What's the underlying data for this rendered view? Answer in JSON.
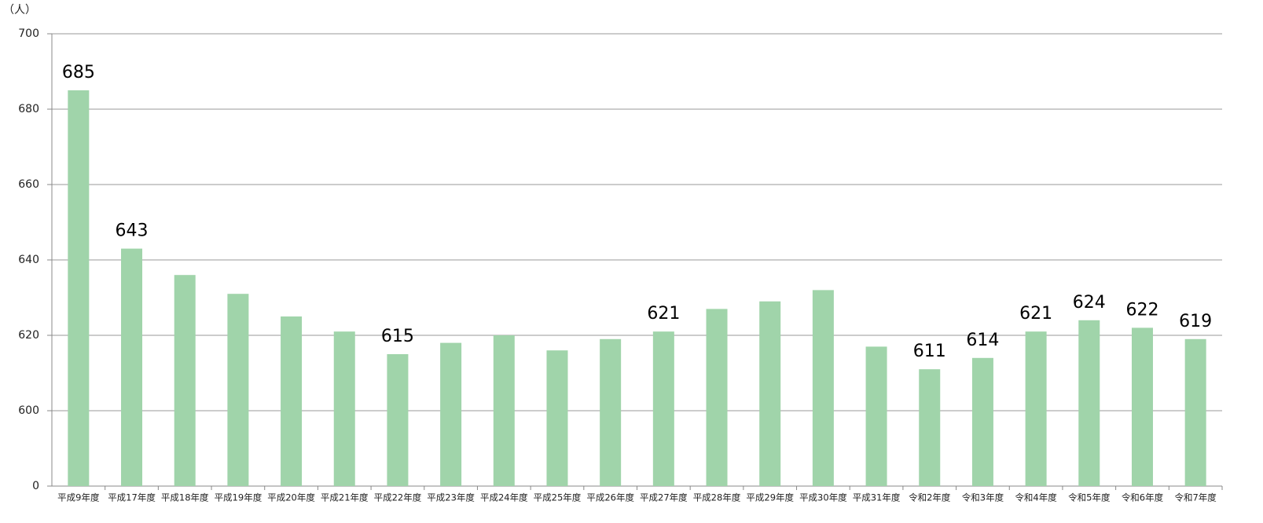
{
  "chart_data": {
    "type": "bar",
    "unit_label": "（人）",
    "categories": [
      "平成9年度",
      "平成17年度",
      "平成18年度",
      "平成19年度",
      "平成20年度",
      "平成21年度",
      "平成22年度",
      "平成23年度",
      "平成24年度",
      "平成25年度",
      "平成26年度",
      "平成27年度",
      "平成28年度",
      "平成29年度",
      "平成30年度",
      "平成31年度",
      "令和2年度",
      "令和3年度",
      "令和4年度",
      "令和5年度",
      "令和6年度",
      "令和7年度"
    ],
    "values": [
      685,
      643,
      636,
      631,
      625,
      621,
      615,
      618,
      620,
      616,
      619,
      621,
      627,
      629,
      632,
      617,
      611,
      614,
      621,
      624,
      622,
      619
    ],
    "value_labels": [
      "685",
      "643",
      null,
      null,
      null,
      null,
      "615",
      null,
      null,
      null,
      null,
      "621",
      null,
      null,
      null,
      null,
      "611",
      "614",
      "621",
      "624",
      "622",
      "619"
    ],
    "color": "#a0d4aa",
    "ylim": [
      0,
      700
    ],
    "yticks": [
      0,
      600,
      620,
      640,
      660,
      680,
      700
    ],
    "grid": true
  }
}
